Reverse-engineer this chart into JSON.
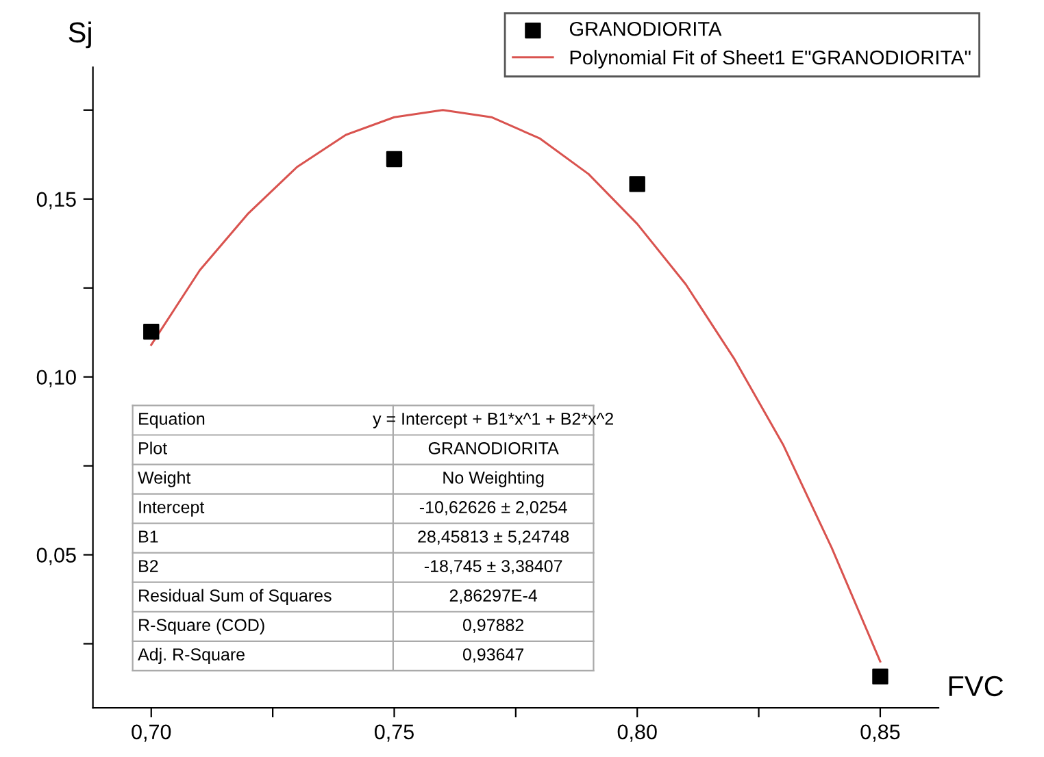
{
  "chart_data": {
    "type": "scatter",
    "xlabel": "FVC",
    "ylabel": "Sj",
    "series": [
      {
        "name": "GRANODIORITA",
        "color": "#000000",
        "marker": "square",
        "x": [
          0.7,
          0.75,
          0.8,
          0.85
        ],
        "values": [
          0.1127,
          0.1612,
          0.1542,
          0.0158
        ]
      },
      {
        "name": "Polynomial Fit of Sheet1 E\"GRANODIORITA\"",
        "type": "line",
        "color": "#d9534f",
        "marker": "none",
        "line_style": "solid",
        "x": [
          0.7,
          0.71,
          0.72,
          0.73,
          0.74,
          0.75,
          0.76,
          0.77,
          0.78,
          0.79,
          0.8,
          0.81,
          0.82,
          0.83,
          0.84,
          0.85
        ],
        "values": [
          0.109,
          0.13,
          0.146,
          0.159,
          0.168,
          0.173,
          0.175,
          0.173,
          0.167,
          0.157,
          0.143,
          0.126,
          0.105,
          0.081,
          0.052,
          0.02
        ]
      }
    ],
    "xlim": [
      0.688,
      0.862
    ],
    "ylim": [
      0.007,
      0.187
    ],
    "xticks": [
      {
        "value": 0.7,
        "label": "0,70"
      },
      {
        "value": 0.725,
        "label": null
      },
      {
        "value": 0.75,
        "label": "0,75"
      },
      {
        "value": 0.775,
        "label": null
      },
      {
        "value": 0.8,
        "label": "0,80"
      },
      {
        "value": 0.825,
        "label": null
      },
      {
        "value": 0.85,
        "label": "0,85"
      }
    ],
    "yticks": [
      {
        "value": 0.025,
        "label": null
      },
      {
        "value": 0.05,
        "label": "0,05"
      },
      {
        "value": 0.075,
        "label": null
      },
      {
        "value": 0.1,
        "label": "0,10"
      },
      {
        "value": 0.125,
        "label": null
      },
      {
        "value": 0.15,
        "label": "0,15"
      },
      {
        "value": 0.175,
        "label": null
      }
    ],
    "grid": false,
    "legend": "top right",
    "annotations": [
      "Equation",
      "y = Intercept + B1*x^1 + B2*x^2",
      "Plot",
      "GRANODIORITA",
      "Weight",
      "No Weighting",
      "Intercept",
      "-10,62626 ± 2,0254",
      "B1",
      "28,45813 ± 5,24748",
      "B2",
      "-18,745 ± 3,38407",
      "Residual Sum of Squares",
      "2,86297E-4",
      "R-Square (COD)",
      "0,97882",
      "Adj. R-Square",
      "0,93647"
    ]
  }
}
